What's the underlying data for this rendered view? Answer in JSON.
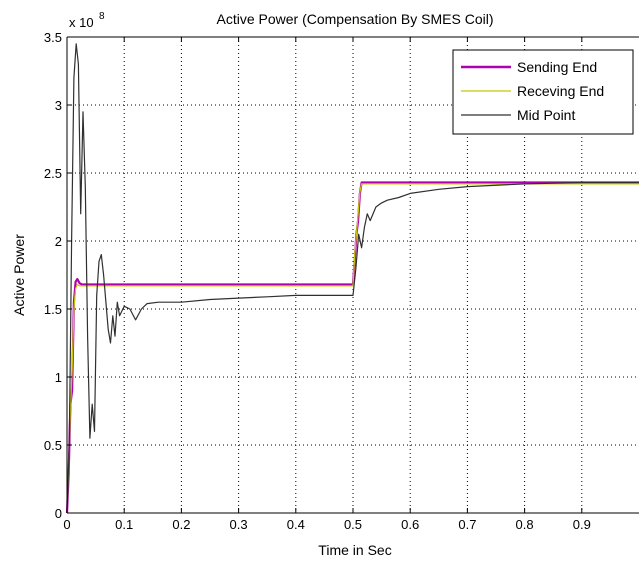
{
  "chart_data": {
    "type": "line",
    "title": "Active Power (Compensation By SMES Coil)",
    "xlabel": "Time in Sec",
    "ylabel": "Active Power",
    "y_multiplier_label": "x 10",
    "y_multiplier_exponent": "8",
    "xlim": [
      0,
      1.0
    ],
    "ylim": [
      0,
      3.5
    ],
    "x_ticks": [
      0,
      0.1,
      0.2,
      0.3,
      0.4,
      0.5,
      0.6,
      0.7,
      0.8,
      0.9
    ],
    "x_tick_labels": [
      "0",
      "0.1",
      "0.2",
      "0.3",
      "0.4",
      "0.5",
      "0.6",
      "0.7",
      "0.8",
      "0.9"
    ],
    "y_ticks": [
      0,
      0.5,
      1,
      1.5,
      2,
      2.5,
      3,
      3.5
    ],
    "y_tick_labels": [
      "0",
      "0.5",
      "1",
      "1.5",
      "2",
      "2.5",
      "3",
      "3.5"
    ],
    "grid": true,
    "legend_position": "top-right",
    "series": [
      {
        "name": "Sending End",
        "color": "#b000b0",
        "x": [
          0,
          0.003,
          0.006,
          0.009,
          0.012,
          0.015,
          0.018,
          0.022,
          0.026,
          0.03,
          0.04,
          0.05,
          0.1,
          0.2,
          0.3,
          0.4,
          0.5,
          0.503,
          0.506,
          0.509,
          0.512,
          0.515,
          0.52,
          0.53,
          0.6,
          0.7,
          0.8,
          0.9,
          1.0
        ],
        "values": [
          0,
          0.3,
          0.8,
          0.9,
          1.55,
          1.7,
          1.72,
          1.69,
          1.68,
          1.68,
          1.68,
          1.68,
          1.68,
          1.68,
          1.68,
          1.68,
          1.68,
          1.85,
          2.05,
          2.15,
          2.35,
          2.43,
          2.43,
          2.43,
          2.43,
          2.43,
          2.43,
          2.43,
          2.43
        ]
      },
      {
        "name": "Receving End",
        "color": "#c8c800",
        "x": [
          0,
          0.003,
          0.006,
          0.009,
          0.012,
          0.015,
          0.018,
          0.022,
          0.026,
          0.03,
          0.04,
          0.05,
          0.1,
          0.2,
          0.3,
          0.4,
          0.5,
          0.503,
          0.506,
          0.509,
          0.512,
          0.515,
          0.52,
          0.53,
          0.6,
          0.7,
          0.8,
          0.9,
          1.0
        ],
        "values": [
          0,
          0.35,
          0.75,
          1.05,
          1.5,
          1.65,
          1.68,
          1.67,
          1.67,
          1.67,
          1.67,
          1.67,
          1.67,
          1.67,
          1.67,
          1.67,
          1.67,
          1.9,
          2.05,
          2.2,
          2.36,
          2.42,
          2.42,
          2.42,
          2.42,
          2.42,
          2.42,
          2.42,
          2.42
        ]
      },
      {
        "name": "Mid Point",
        "color": "#303030",
        "x": [
          0,
          0.004,
          0.008,
          0.012,
          0.016,
          0.02,
          0.024,
          0.028,
          0.032,
          0.036,
          0.04,
          0.044,
          0.048,
          0.052,
          0.056,
          0.06,
          0.064,
          0.068,
          0.072,
          0.076,
          0.08,
          0.084,
          0.088,
          0.092,
          0.1,
          0.11,
          0.12,
          0.13,
          0.14,
          0.16,
          0.2,
          0.25,
          0.3,
          0.35,
          0.4,
          0.45,
          0.5,
          0.505,
          0.51,
          0.515,
          0.52,
          0.525,
          0.53,
          0.54,
          0.55,
          0.56,
          0.58,
          0.6,
          0.65,
          0.7,
          0.8,
          0.9,
          1.0
        ],
        "values": [
          0,
          0.5,
          2.0,
          3.2,
          3.45,
          3.3,
          2.2,
          2.95,
          2.4,
          1.3,
          0.55,
          0.8,
          0.6,
          1.6,
          1.85,
          1.9,
          1.75,
          1.55,
          1.35,
          1.25,
          1.45,
          1.3,
          1.55,
          1.45,
          1.52,
          1.5,
          1.42,
          1.5,
          1.54,
          1.55,
          1.55,
          1.57,
          1.58,
          1.59,
          1.6,
          1.6,
          1.6,
          1.8,
          2.05,
          1.95,
          2.1,
          2.2,
          2.15,
          2.25,
          2.28,
          2.3,
          2.32,
          2.35,
          2.38,
          2.4,
          2.42,
          2.43,
          2.43
        ]
      }
    ]
  }
}
